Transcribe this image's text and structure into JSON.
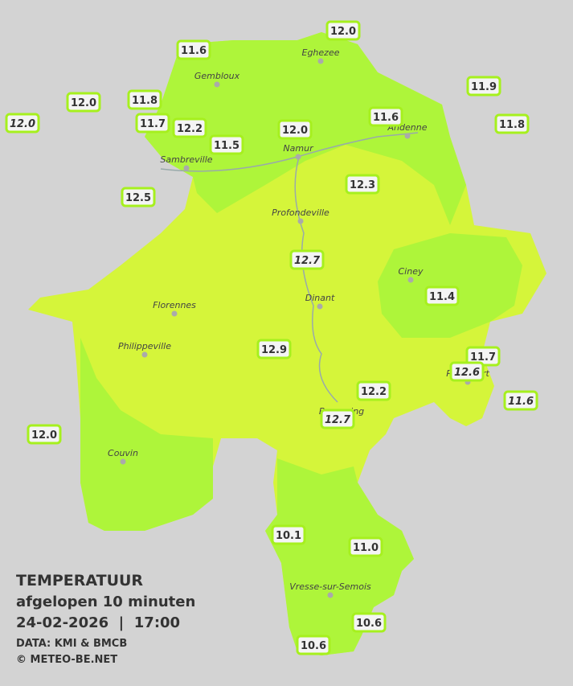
{
  "map": {
    "stations": [
      "12.0",
      "11.6",
      "11.9",
      "12.0",
      "11.8",
      "12.0",
      "11.7",
      "12.2",
      "11.6",
      "11.8",
      "12.0",
      "11.5",
      "12.3",
      "12.5",
      "12.7",
      "11.4",
      "12.9",
      "11.7",
      "12.6",
      "11.6",
      "12.2",
      "12.7",
      "12.0",
      "10.1",
      "11.0",
      "10.6",
      "10.6"
    ],
    "cities": [
      "Eghezee",
      "Gembloux",
      "Andenne",
      "Namur",
      "Sambreville",
      "Profondeville",
      "Ciney",
      "Dinant",
      "Florennes",
      "Philippeville",
      "Couvin",
      "Vresse-sur-Semois",
      "Beauraing",
      "Rochefort"
    ]
  },
  "legend": {
    "title": "TEMPERATUUR",
    "subtitle": "afgelopen 10 minuten",
    "datetime": "24-02-2026  |  17:00",
    "source": "DATA: KMI & BMCB",
    "copyright": "© METEO-BE.NET"
  }
}
